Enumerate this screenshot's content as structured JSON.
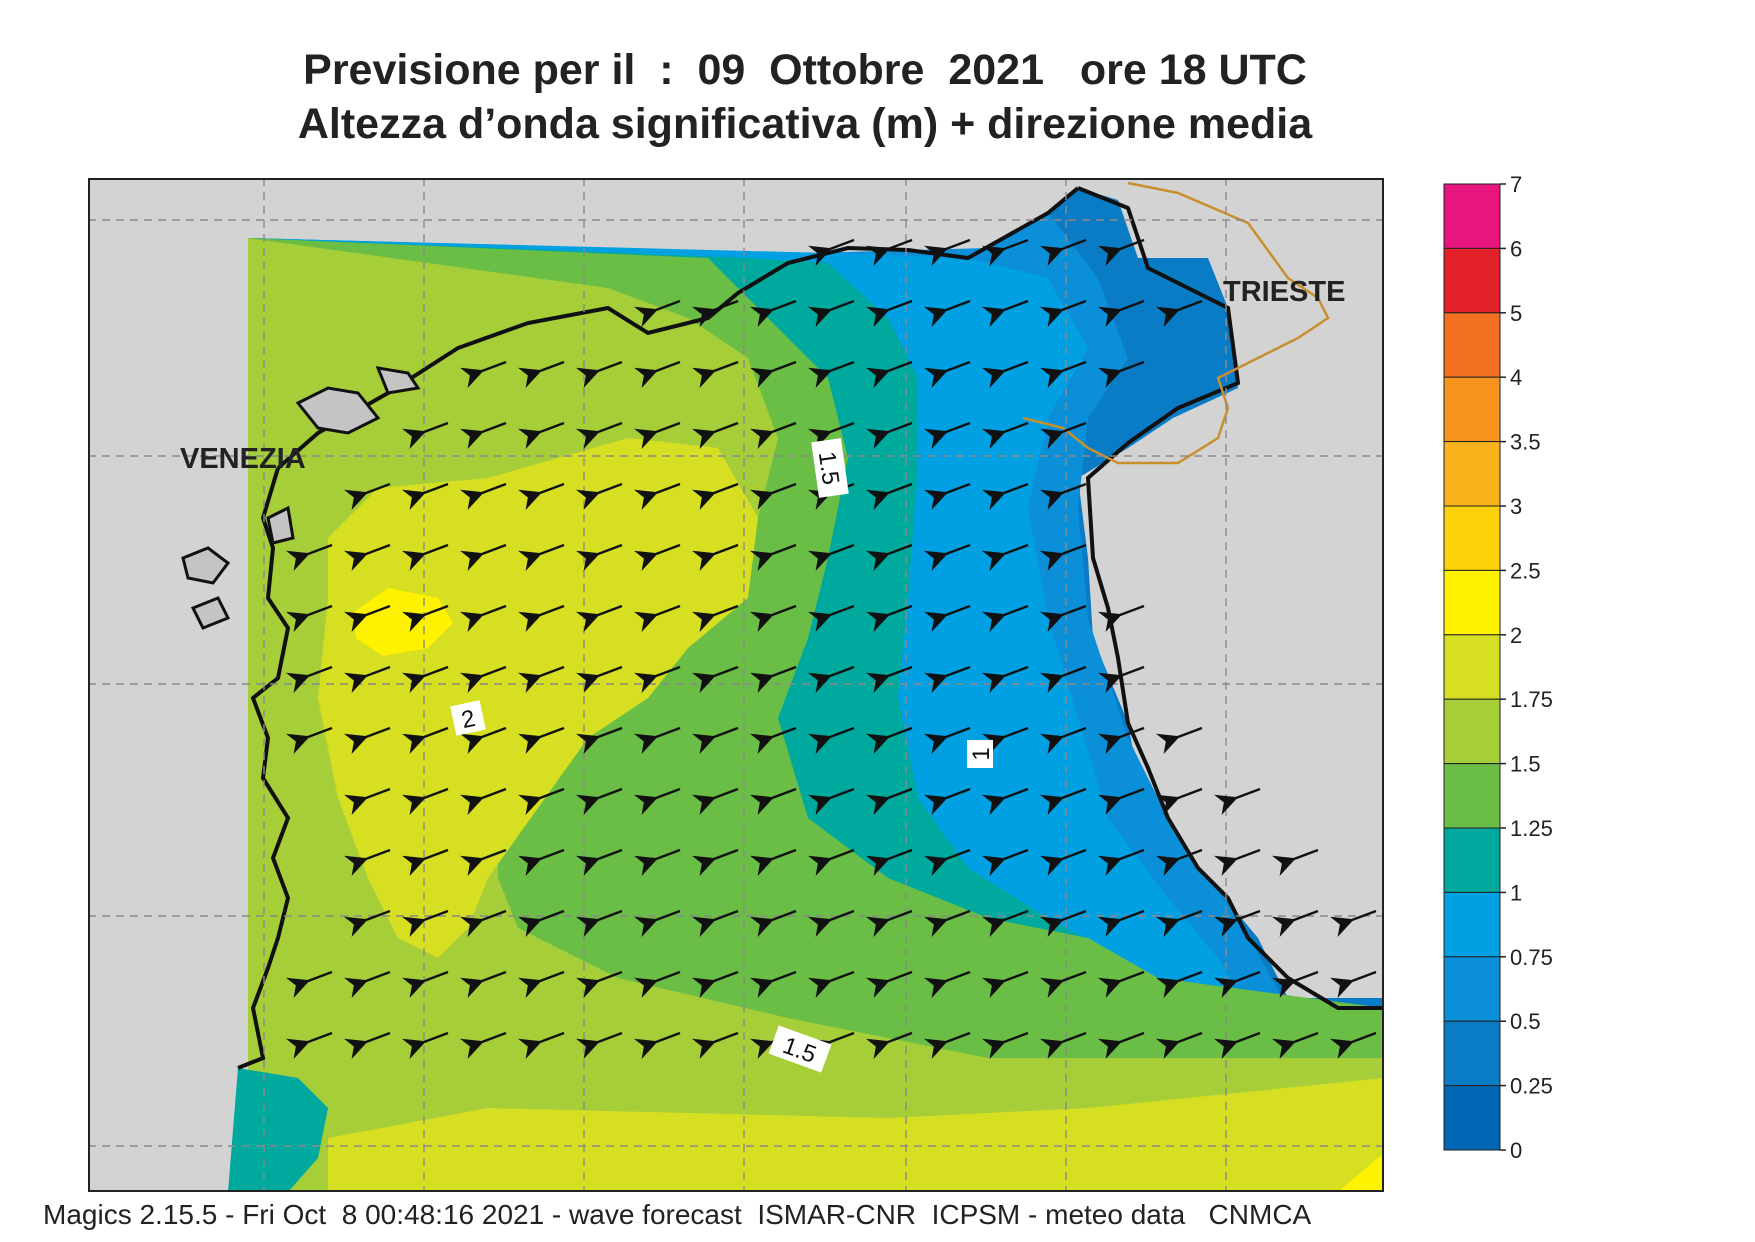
{
  "header": {
    "title_line1": "Previsione per il  :  09  Ottobre  2021   ore 18 UTC",
    "title_line2": "Altezza d’onda significativa (m) + direzione media"
  },
  "map": {
    "city_labels": [
      "VENEZIA",
      "TRIESTE"
    ],
    "contour_labels": [
      "1.5",
      "2",
      "1",
      "1.5"
    ],
    "land_color": "#d3d3d3",
    "border_color": "#c8902d",
    "arrow_direction": "south-west"
  },
  "colorbar": {
    "ticks": [
      "7",
      "6",
      "5",
      "4",
      "3.5",
      "3",
      "2.5",
      "2",
      "1.75",
      "1.5",
      "1.25",
      "1",
      "0.75",
      "0.5",
      "0.25",
      "0"
    ],
    "colors": [
      "#e8157e",
      "#e32128",
      "#f36f21",
      "#f7941e",
      "#fbb31d",
      "#fcd20b",
      "#fff200",
      "#d7df23",
      "#a6ce39",
      "#6abd45",
      "#00a99d",
      "#00a0e3",
      "#0b8fd8",
      "#0a7cc6",
      "#0066b3"
    ]
  },
  "footer": {
    "credit": "Magics 2.15.5 - Fri Oct  8 00:48:16 2021 - wave forecast  ISMAR-CNR  ICPSM - meteo data   CNMCA"
  }
}
